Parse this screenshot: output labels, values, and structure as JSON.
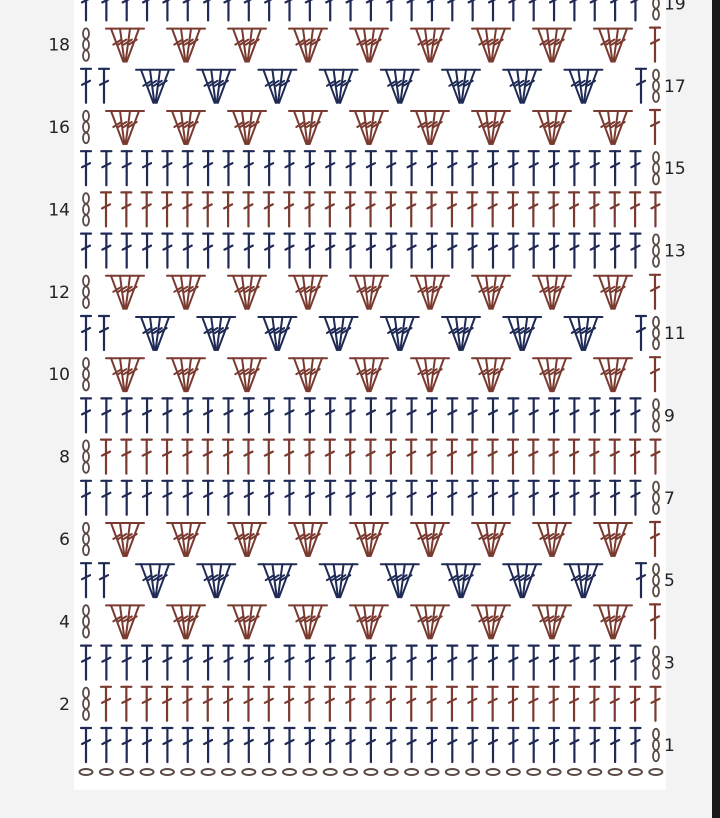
{
  "colors": {
    "blue": "#1f2a55",
    "red": "#7a3a30",
    "chain": "#5a4a45",
    "background": "#f3f3f3",
    "chart_area": "#ffffff"
  },
  "foundation": {
    "type": "chain",
    "count": 29
  },
  "rows": [
    {
      "number": "1",
      "type": "dc-row",
      "color": "blue",
      "label_side": "right"
    },
    {
      "number": "2",
      "type": "dc-row",
      "color": "red",
      "label_side": "left"
    },
    {
      "number": "3",
      "type": "dc-row",
      "color": "blue",
      "label_side": "right"
    },
    {
      "number": "4",
      "type": "fan-row",
      "color": "red",
      "label_side": "left"
    },
    {
      "number": "5",
      "type": "fan-row-alt",
      "color": "blue",
      "label_side": "right"
    },
    {
      "number": "6",
      "type": "fan-row",
      "color": "red",
      "label_side": "left"
    },
    {
      "number": "7",
      "type": "dc-row",
      "color": "blue",
      "label_side": "right"
    },
    {
      "number": "8",
      "type": "dc-row",
      "color": "red",
      "label_side": "left"
    },
    {
      "number": "9",
      "type": "dc-row",
      "color": "blue",
      "label_side": "right"
    },
    {
      "number": "10",
      "type": "fan-row",
      "color": "red",
      "label_side": "left"
    },
    {
      "number": "11",
      "type": "fan-row-alt",
      "color": "blue",
      "label_side": "right"
    },
    {
      "number": "12",
      "type": "fan-row",
      "color": "red",
      "label_side": "left"
    },
    {
      "number": "13",
      "type": "dc-row",
      "color": "blue",
      "label_side": "right"
    },
    {
      "number": "14",
      "type": "dc-row",
      "color": "red",
      "label_side": "left"
    },
    {
      "number": "15",
      "type": "dc-row",
      "color": "blue",
      "label_side": "right"
    },
    {
      "number": "16",
      "type": "fan-row",
      "color": "red",
      "label_side": "left"
    },
    {
      "number": "17",
      "type": "fan-row-alt",
      "color": "blue",
      "label_side": "right"
    },
    {
      "number": "18",
      "type": "fan-row",
      "color": "red",
      "label_side": "left"
    },
    {
      "number": "19",
      "type": "dc-row",
      "color": "blue",
      "label_side": "right"
    }
  ]
}
